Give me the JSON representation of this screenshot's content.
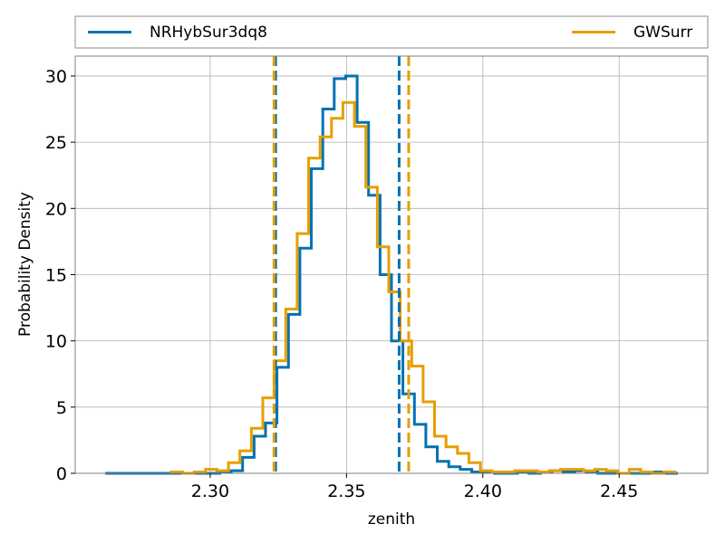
{
  "chart_data": {
    "type": "step-histogram",
    "xlabel": "zenith",
    "ylabel": "Probability Density",
    "xlim": [
      2.2505,
      2.4825
    ],
    "ylim": [
      0,
      31.5
    ],
    "xticks": [
      2.3,
      2.35,
      2.4,
      2.45
    ],
    "xtick_labels": [
      "2.30",
      "2.35",
      "2.40",
      "2.45"
    ],
    "yticks": [
      0,
      5,
      10,
      15,
      20,
      25,
      30
    ],
    "ytick_labels": [
      "0",
      "5",
      "10",
      "15",
      "20",
      "25",
      "30"
    ],
    "grid": true,
    "legend": {
      "placement": "top, above plot",
      "columns": 2
    },
    "series": [
      {
        "name": "NRHybSur3dq8",
        "color": "#0072B2",
        "bin_edges": [
          2.2615,
          2.2657,
          2.2699,
          2.2741,
          2.2783,
          2.2825,
          2.2867,
          2.2909,
          2.2951,
          2.2993,
          2.3035,
          2.3077,
          2.3119,
          2.3161,
          2.3203,
          2.3245,
          2.3287,
          2.3329,
          2.3371,
          2.3413,
          2.3455,
          2.3497,
          2.3539,
          2.3581,
          2.3623,
          2.3665,
          2.3707,
          2.3749,
          2.3791,
          2.3833,
          2.3875,
          2.3917,
          2.3959,
          2.4001,
          2.4043,
          2.4085,
          2.4127,
          2.4169,
          2.4211,
          2.4253,
          2.4295,
          2.4337,
          2.4379,
          2.4421,
          2.4463,
          2.4505,
          2.4547,
          2.4589,
          2.4631,
          2.4673,
          2.4715
        ],
        "density": [
          0.0,
          0.0,
          0.0,
          0.0,
          0.0,
          0.0,
          0.0,
          0.0,
          0.0,
          0.0,
          0.1,
          0.2,
          1.2,
          2.8,
          3.8,
          8.0,
          12.0,
          17.0,
          23.0,
          27.5,
          29.8,
          30.0,
          26.5,
          21.0,
          15.0,
          10.0,
          6.0,
          3.7,
          2.0,
          0.9,
          0.5,
          0.3,
          0.1,
          0.1,
          0.0,
          0.0,
          0.1,
          0.0,
          0.1,
          0.2,
          0.1,
          0.2,
          0.1,
          0.0,
          0.0,
          0.0,
          0.0,
          0.0,
          0.1,
          0.0
        ],
        "interval_lines": [
          2.324,
          2.3693
        ]
      },
      {
        "name": "GWSurr",
        "color": "#E69F00",
        "bin_edges": [
          2.2857,
          2.2899,
          2.2941,
          2.2983,
          2.3025,
          2.3067,
          2.3109,
          2.3151,
          2.3193,
          2.3235,
          2.3277,
          2.3319,
          2.3361,
          2.3403,
          2.3445,
          2.3487,
          2.3529,
          2.3571,
          2.3613,
          2.3655,
          2.3697,
          2.3739,
          2.3781,
          2.3823,
          2.3865,
          2.3907,
          2.3949,
          2.3991,
          2.4033,
          2.4075,
          2.4117,
          2.4159,
          2.4201,
          2.4243,
          2.4285,
          2.4327,
          2.4369,
          2.4411,
          2.4453,
          2.4495,
          2.4537,
          2.4579,
          2.4621,
          2.4663,
          2.4705
        ],
        "density": [
          0.1,
          0.0,
          0.1,
          0.3,
          0.2,
          0.8,
          1.7,
          3.4,
          5.7,
          8.5,
          12.4,
          18.1,
          23.8,
          25.4,
          26.8,
          28.0,
          26.2,
          21.6,
          17.1,
          13.7,
          10.0,
          8.1,
          5.4,
          2.8,
          2.0,
          1.5,
          0.8,
          0.2,
          0.1,
          0.1,
          0.2,
          0.2,
          0.1,
          0.2,
          0.3,
          0.3,
          0.2,
          0.3,
          0.2,
          0.0,
          0.3,
          0.1,
          0.0,
          0.1
        ],
        "interval_lines": [
          2.3234,
          2.3728
        ]
      }
    ]
  }
}
